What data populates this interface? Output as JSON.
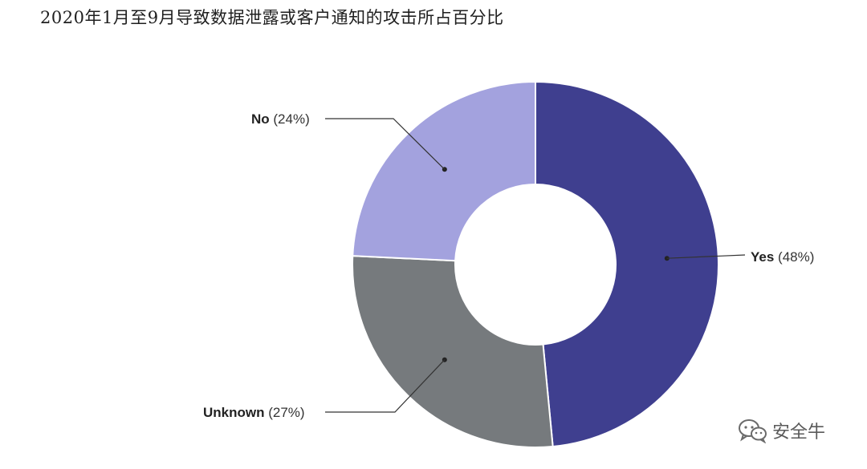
{
  "title": "2020年1月至9月导致数据泄露或客户通知的攻击所占百分比",
  "chart_data": {
    "type": "pie",
    "donut": true,
    "slices": [
      {
        "name": "Yes",
        "value": 48,
        "pct_label": "(48%)",
        "color": "#3f3f8f"
      },
      {
        "name": "Unknown",
        "value": 27,
        "pct_label": "(27%)",
        "color": "#767a7d"
      },
      {
        "name": "No",
        "value": 24,
        "pct_label": "(24%)",
        "color": "#a3a2de"
      }
    ]
  },
  "watermark": {
    "text": "安全牛",
    "icon": "wechat-icon"
  }
}
